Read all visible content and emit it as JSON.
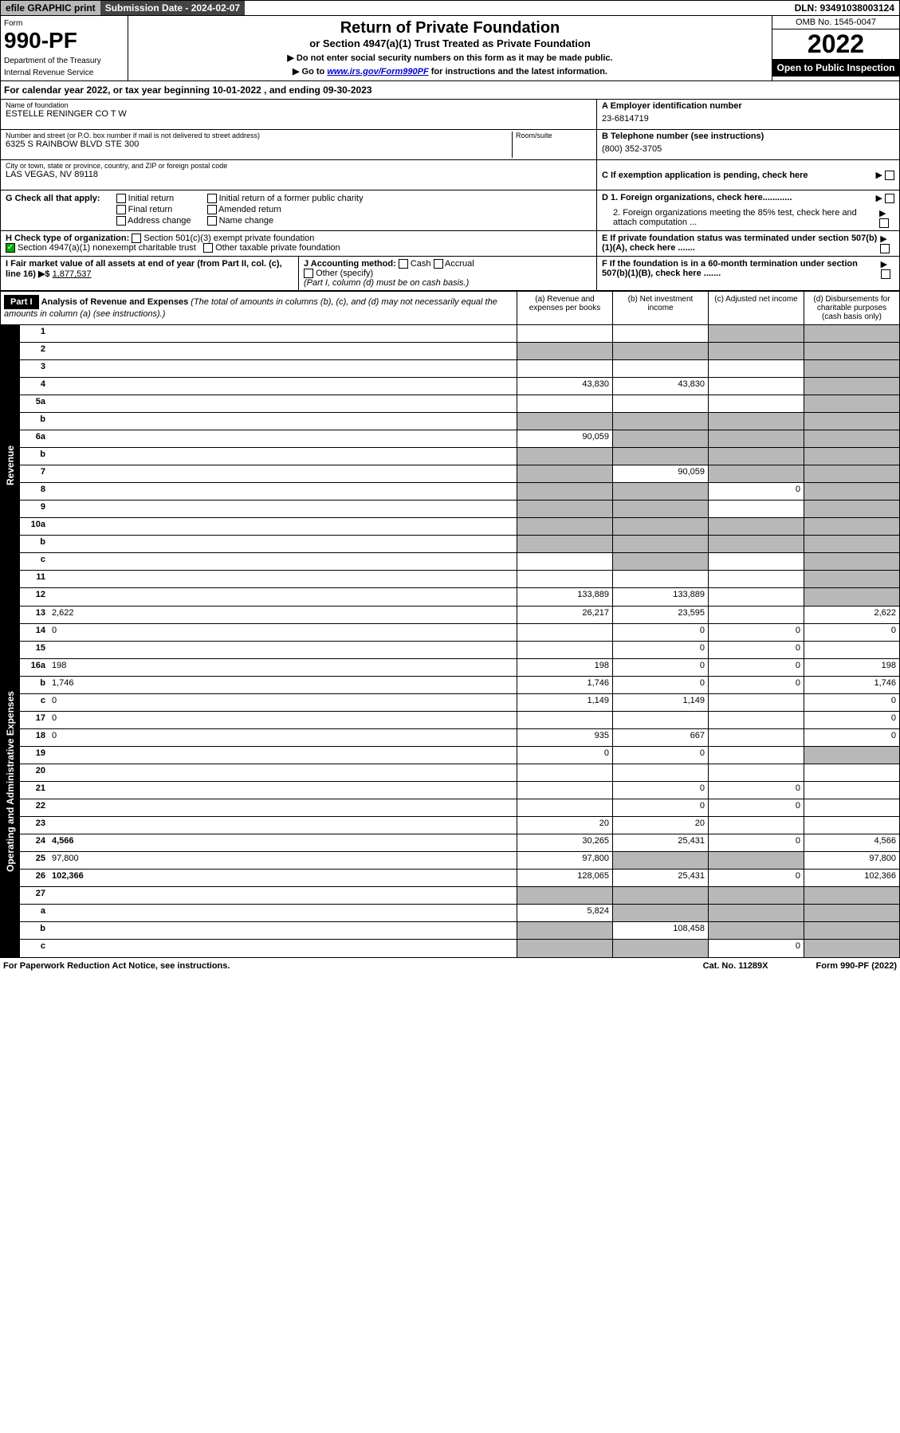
{
  "top": {
    "efile": "efile GRAPHIC print",
    "submission": "Submission Date - 2024-02-07",
    "dln": "DLN: 93491038003124"
  },
  "header": {
    "form_label": "Form",
    "form_number": "990-PF",
    "dept": "Department of the Treasury",
    "irs": "Internal Revenue Service",
    "title": "Return of Private Foundation",
    "subtitle": "or Section 4947(a)(1) Trust Treated as Private Foundation",
    "instr1": "▶ Do not enter social security numbers on this form as it may be made public.",
    "instr2": "▶ Go to www.irs.gov/Form990PF for instructions and the latest information.",
    "omb": "OMB No. 1545-0047",
    "year": "2022",
    "open": "Open to Public Inspection"
  },
  "cal_year": "For calendar year 2022, or tax year beginning 10-01-2022             , and ending 09-30-2023",
  "entity": {
    "name_label": "Name of foundation",
    "name": "ESTELLE RENINGER CO T W",
    "addr_label": "Number and street (or P.O. box number if mail is not delivered to street address)",
    "addr": "6325 S RAINBOW BLVD STE 300",
    "room_label": "Room/suite",
    "city_label": "City or town, state or province, country, and ZIP or foreign postal code",
    "city": "LAS VEGAS, NV  89118",
    "a_label": "A Employer identification number",
    "a_val": "23-6814719",
    "b_label": "B Telephone number (see instructions)",
    "b_val": "(800) 352-3705",
    "c_label": "C If exemption application is pending, check here"
  },
  "g": {
    "label": "G Check all that apply:",
    "opts": [
      "Initial return",
      "Final return",
      "Address change",
      "Initial return of a former public charity",
      "Amended return",
      "Name change"
    ]
  },
  "d": {
    "d1": "D 1. Foreign organizations, check here............",
    "d2": "2. Foreign organizations meeting the 85% test, check here and attach computation ..."
  },
  "h": {
    "label": "H Check type of organization:",
    "opt1": "Section 501(c)(3) exempt private foundation",
    "opt2": "Section 4947(a)(1) nonexempt charitable trust",
    "opt3": "Other taxable private foundation"
  },
  "e": "E If private foundation status was terminated under section 507(b)(1)(A), check here .......",
  "i": {
    "label": "I Fair market value of all assets at end of year (from Part II, col. (c), line 16) ▶$",
    "val": "1,877,537"
  },
  "j": {
    "label": "J Accounting method:",
    "cash": "Cash",
    "accrual": "Accrual",
    "other": "Other (specify)",
    "note": "(Part I, column (d) must be on cash basis.)"
  },
  "f": "F If the foundation is in a 60-month termination under section 507(b)(1)(B), check here .......",
  "part1": {
    "label": "Part I",
    "title": "Analysis of Revenue and Expenses",
    "note": "(The total of amounts in columns (b), (c), and (d) may not necessarily equal the amounts in column (a) (see instructions).)",
    "col_a": "(a) Revenue and expenses per books",
    "col_b": "(b) Net investment income",
    "col_c": "(c) Adjusted net income",
    "col_d": "(d) Disbursements for charitable purposes (cash basis only)"
  },
  "revenue": {
    "side": "Revenue",
    "rows": [
      {
        "n": "1",
        "d": "",
        "a": "",
        "b": "",
        "c": "",
        "shade_c": true,
        "shade_d": true
      },
      {
        "n": "2",
        "d": "",
        "a": "",
        "b": "",
        "c": "",
        "shade_a": true,
        "shade_b": true,
        "shade_c": true,
        "shade_d": true
      },
      {
        "n": "3",
        "d": "",
        "a": "",
        "b": "",
        "c": "",
        "shade_d": true
      },
      {
        "n": "4",
        "d": "",
        "a": "43,830",
        "b": "43,830",
        "c": "",
        "shade_d": true
      },
      {
        "n": "5a",
        "d": "",
        "a": "",
        "b": "",
        "c": "",
        "shade_d": true
      },
      {
        "n": "b",
        "d": "",
        "a": "",
        "b": "",
        "c": "",
        "shade_a": true,
        "shade_b": true,
        "shade_c": true,
        "shade_d": true
      },
      {
        "n": "6a",
        "d": "",
        "a": "90,059",
        "b": "",
        "c": "",
        "shade_b": true,
        "shade_c": true,
        "shade_d": true
      },
      {
        "n": "b",
        "d": "",
        "a": "",
        "b": "",
        "c": "",
        "shade_a": true,
        "shade_b": true,
        "shade_c": true,
        "shade_d": true
      },
      {
        "n": "7",
        "d": "",
        "a": "",
        "b": "90,059",
        "c": "",
        "shade_a": true,
        "shade_c": true,
        "shade_d": true
      },
      {
        "n": "8",
        "d": "",
        "a": "",
        "b": "",
        "c": "0",
        "shade_a": true,
        "shade_b": true,
        "shade_d": true
      },
      {
        "n": "9",
        "d": "",
        "a": "",
        "b": "",
        "c": "",
        "shade_a": true,
        "shade_b": true,
        "shade_d": true
      },
      {
        "n": "10a",
        "d": "",
        "a": "",
        "b": "",
        "c": "",
        "shade_a": true,
        "shade_b": true,
        "shade_c": true,
        "shade_d": true
      },
      {
        "n": "b",
        "d": "",
        "a": "",
        "b": "",
        "c": "",
        "shade_a": true,
        "shade_b": true,
        "shade_c": true,
        "shade_d": true
      },
      {
        "n": "c",
        "d": "",
        "a": "",
        "b": "",
        "c": "",
        "shade_b": true,
        "shade_d": true
      },
      {
        "n": "11",
        "d": "",
        "a": "",
        "b": "",
        "c": "",
        "shade_d": true
      },
      {
        "n": "12",
        "d": "",
        "a": "133,889",
        "b": "133,889",
        "c": "",
        "bold": true,
        "shade_d": true
      }
    ]
  },
  "expenses": {
    "side": "Operating and Administrative Expenses",
    "rows": [
      {
        "n": "13",
        "d": "2,622",
        "a": "26,217",
        "b": "23,595",
        "c": ""
      },
      {
        "n": "14",
        "d": "0",
        "a": "",
        "b": "0",
        "c": "0"
      },
      {
        "n": "15",
        "d": "",
        "a": "",
        "b": "0",
        "c": "0"
      },
      {
        "n": "16a",
        "d": "198",
        "a": "198",
        "b": "0",
        "c": "0"
      },
      {
        "n": "b",
        "d": "1,746",
        "a": "1,746",
        "b": "0",
        "c": "0"
      },
      {
        "n": "c",
        "d": "0",
        "a": "1,149",
        "b": "1,149",
        "c": ""
      },
      {
        "n": "17",
        "d": "0",
        "a": "",
        "b": "",
        "c": ""
      },
      {
        "n": "18",
        "d": "0",
        "a": "935",
        "b": "667",
        "c": ""
      },
      {
        "n": "19",
        "d": "",
        "a": "0",
        "b": "0",
        "c": "",
        "shade_d": true
      },
      {
        "n": "20",
        "d": "",
        "a": "",
        "b": "",
        "c": ""
      },
      {
        "n": "21",
        "d": "",
        "a": "",
        "b": "0",
        "c": "0"
      },
      {
        "n": "22",
        "d": "",
        "a": "",
        "b": "0",
        "c": "0"
      },
      {
        "n": "23",
        "d": "",
        "a": "20",
        "b": "20",
        "c": ""
      },
      {
        "n": "24",
        "d": "4,566",
        "a": "30,265",
        "b": "25,431",
        "c": "0",
        "bold": true
      },
      {
        "n": "25",
        "d": "97,800",
        "a": "97,800",
        "b": "",
        "c": "",
        "shade_b": true,
        "shade_c": true
      },
      {
        "n": "26",
        "d": "102,366",
        "a": "128,065",
        "b": "25,431",
        "c": "0",
        "bold": true
      },
      {
        "n": "27",
        "d": "",
        "a": "",
        "b": "",
        "c": "",
        "shade_a": true,
        "shade_b": true,
        "shade_c": true,
        "shade_d": true
      },
      {
        "n": "a",
        "d": "",
        "a": "5,824",
        "b": "",
        "c": "",
        "bold": true,
        "shade_b": true,
        "shade_c": true,
        "shade_d": true
      },
      {
        "n": "b",
        "d": "",
        "a": "",
        "b": "108,458",
        "c": "",
        "bold": true,
        "shade_a": true,
        "shade_c": true,
        "shade_d": true
      },
      {
        "n": "c",
        "d": "",
        "a": "",
        "b": "",
        "c": "0",
        "bold": true,
        "shade_a": true,
        "shade_b": true,
        "shade_d": true
      }
    ]
  },
  "footer": {
    "left": "For Paperwork Reduction Act Notice, see instructions.",
    "mid": "Cat. No. 11289X",
    "right": "Form 990-PF (2022)"
  }
}
